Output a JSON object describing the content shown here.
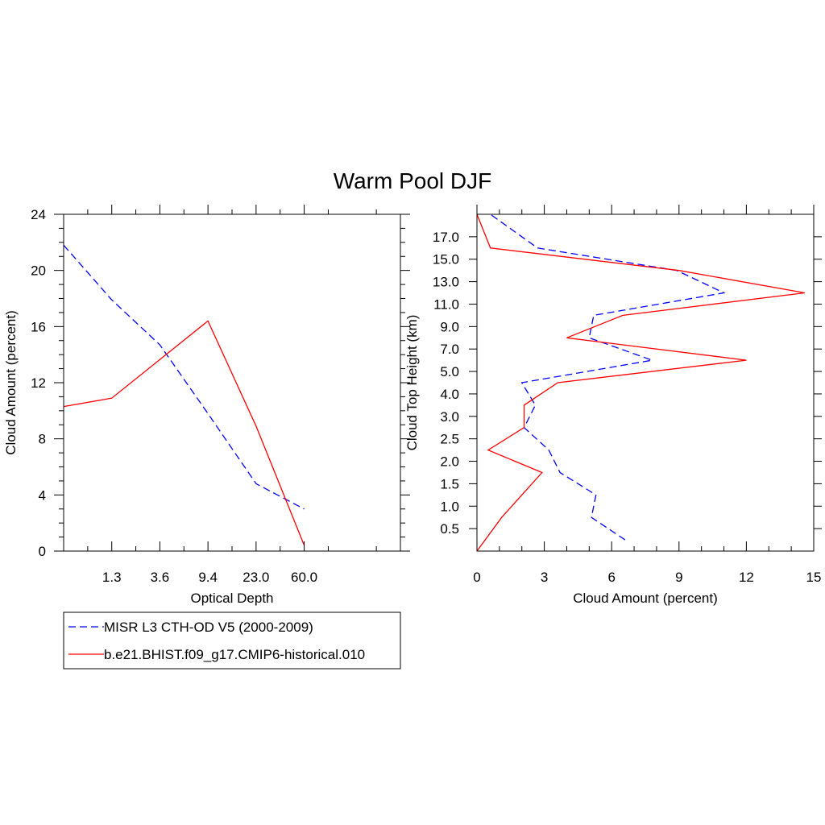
{
  "title": "Warm Pool DJF",
  "chart_data": [
    {
      "type": "line",
      "xlabel": "Optical Depth",
      "ylabel": "Cloud Amount (percent)",
      "x_tick_labels": [
        "1.3",
        "3.6",
        "9.4",
        "23.0",
        "60.0"
      ],
      "x_bin_count": 7,
      "ylim": [
        0,
        24
      ],
      "y_ticks": [
        0,
        4,
        8,
        12,
        16,
        20,
        24
      ],
      "series": [
        {
          "name": "MISR L3 CTH-OD V5 (2000-2009)",
          "color": "#0000ff",
          "dashed": true,
          "points": [
            [
              0,
              21.8
            ],
            [
              2,
              17.9
            ],
            [
              4,
              14.7
            ],
            [
              6,
              9.8
            ],
            [
              8,
              4.8
            ],
            [
              10,
              3.0
            ]
          ]
        },
        {
          "name": "b.e21.BHIST.f09_g17.CMIP6-historical.010",
          "color": "#ff0000",
          "dashed": false,
          "points": [
            [
              0,
              10.3
            ],
            [
              2,
              10.9
            ],
            [
              6,
              16.4
            ],
            [
              8,
              8.9
            ],
            [
              10,
              0.4
            ]
          ]
        }
      ]
    },
    {
      "type": "line",
      "xlabel": "Cloud Amount (percent)",
      "ylabel": "Cloud Top Height (km)",
      "xlim": [
        0,
        15
      ],
      "x_ticks": [
        0,
        3,
        6,
        9,
        12,
        15
      ],
      "y_tick_labels": [
        "0.5",
        "1.0",
        "1.5",
        "2.0",
        "2.5",
        "3.0",
        "4.0",
        "5.0",
        "7.0",
        "9.0",
        "11.0",
        "13.0",
        "15.0",
        "17.0"
      ],
      "series": [
        {
          "name": "MISR L3 CTH-OD V5 (2000-2009)",
          "color": "#0000ff",
          "dashed": true,
          "points": [
            [
              6.6,
              0.25
            ],
            [
              5.1,
              0.75
            ],
            [
              5.3,
              1.25
            ],
            [
              3.7,
              1.75
            ],
            [
              3.2,
              2.25
            ],
            [
              2.1,
              2.75
            ],
            [
              2.6,
              3.5
            ],
            [
              2.0,
              4.5
            ],
            [
              7.8,
              6.0
            ],
            [
              5.0,
              8.0
            ],
            [
              5.2,
              10.0
            ],
            [
              11.0,
              12.0
            ],
            [
              8.9,
              14.0
            ],
            [
              2.7,
              16.0
            ],
            [
              0.6,
              18.0
            ]
          ]
        },
        {
          "name": "b.e21.BHIST.f09_g17.CMIP6-historical.010",
          "color": "#ff0000",
          "dashed": false,
          "points": [
            [
              0.0,
              0.0
            ],
            [
              1.1,
              0.75
            ],
            [
              2.9,
              1.75
            ],
            [
              0.5,
              2.25
            ],
            [
              2.1,
              2.75
            ],
            [
              2.1,
              3.5
            ],
            [
              3.6,
              4.5
            ],
            [
              12.0,
              6.0
            ],
            [
              4.0,
              8.0
            ],
            [
              6.5,
              10.0
            ],
            [
              14.6,
              12.0
            ],
            [
              9.0,
              14.0
            ],
            [
              0.6,
              16.0
            ],
            [
              0.0,
              18.0
            ]
          ]
        }
      ]
    }
  ]
}
